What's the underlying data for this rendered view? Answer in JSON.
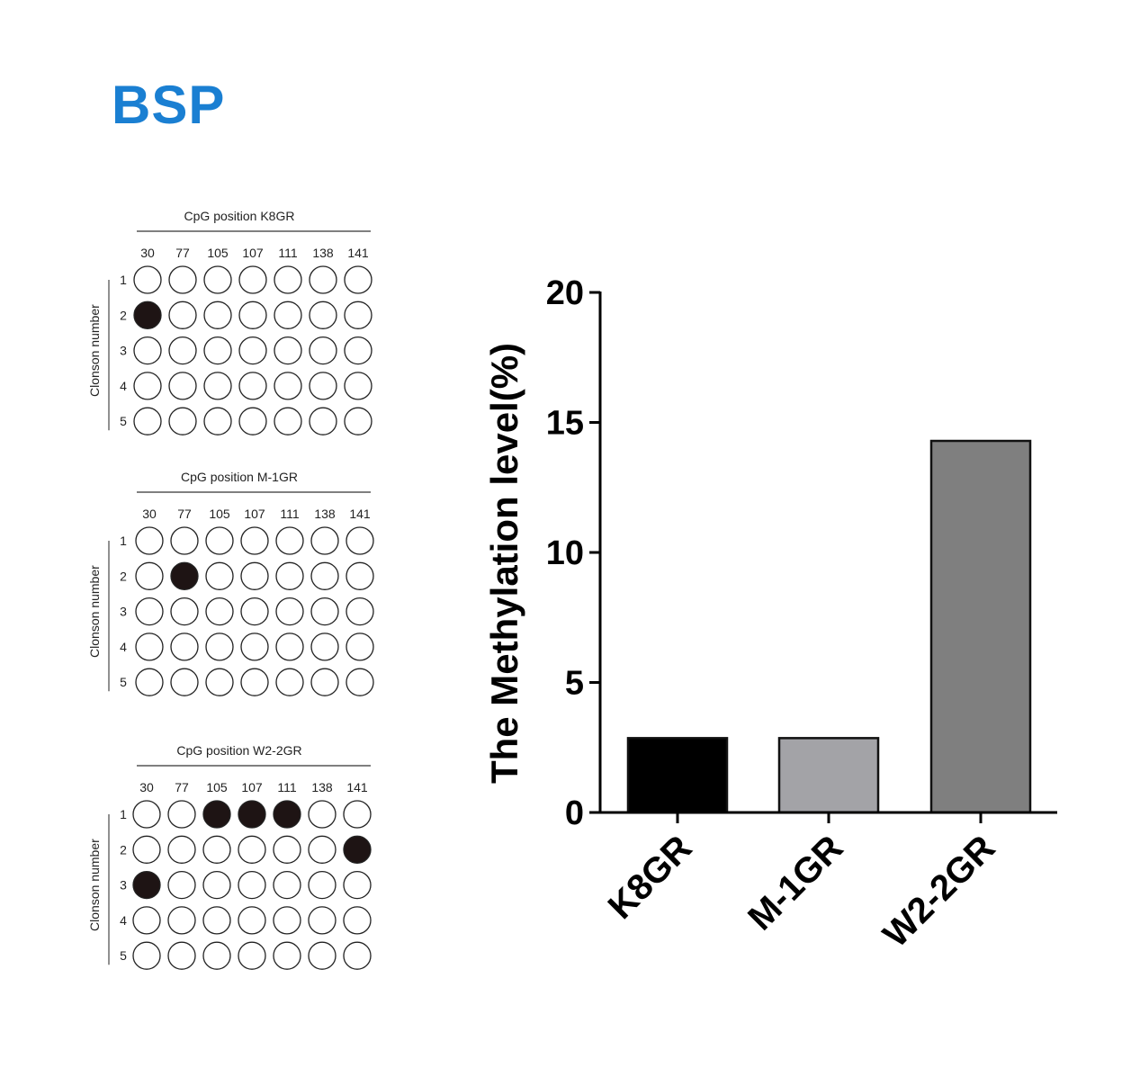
{
  "title": "BSP",
  "lollipop_panels": [
    {
      "title": "CpG position  K8GR",
      "positions": [
        "30",
        "77",
        "105",
        "107",
        "111",
        "138",
        "141"
      ],
      "clone_label": "Clonson number",
      "clones": [
        "1",
        "2",
        "3",
        "4",
        "5"
      ],
      "methylated": [
        [
          0,
          0,
          0,
          0,
          0,
          0,
          0
        ],
        [
          1,
          0,
          0,
          0,
          0,
          0,
          0
        ],
        [
          0,
          0,
          0,
          0,
          0,
          0,
          0
        ],
        [
          0,
          0,
          0,
          0,
          0,
          0,
          0
        ],
        [
          0,
          0,
          0,
          0,
          0,
          0,
          0
        ]
      ]
    },
    {
      "title": "CpG position  M-1GR",
      "positions": [
        "30",
        "77",
        "105",
        "107",
        "111",
        "138",
        "141"
      ],
      "clone_label": "Clonson number",
      "clones": [
        "1",
        "2",
        "3",
        "4",
        "5"
      ],
      "methylated": [
        [
          0,
          0,
          0,
          0,
          0,
          0,
          0
        ],
        [
          0,
          1,
          0,
          0,
          0,
          0,
          0
        ],
        [
          0,
          0,
          0,
          0,
          0,
          0,
          0
        ],
        [
          0,
          0,
          0,
          0,
          0,
          0,
          0
        ],
        [
          0,
          0,
          0,
          0,
          0,
          0,
          0
        ]
      ]
    },
    {
      "title": "CpG position  W2-2GR",
      "positions": [
        "30",
        "77",
        "105",
        "107",
        "111",
        "138",
        "141"
      ],
      "clone_label": "Clonson number",
      "clones": [
        "1",
        "2",
        "3",
        "4",
        "5"
      ],
      "methylated": [
        [
          0,
          0,
          1,
          1,
          1,
          0,
          0
        ],
        [
          0,
          0,
          0,
          0,
          0,
          0,
          1
        ],
        [
          1,
          0,
          0,
          0,
          0,
          0,
          0
        ],
        [
          0,
          0,
          0,
          0,
          0,
          0,
          0
        ],
        [
          0,
          0,
          0,
          0,
          0,
          0,
          0
        ]
      ]
    }
  ],
  "chart_data": {
    "type": "bar",
    "categories": [
      "K8GR",
      "M-1GR",
      "W2-2GR"
    ],
    "values": [
      2.86,
      2.86,
      14.29
    ],
    "colors": [
      "#000000",
      "#a3a3a7",
      "#7f7f7f"
    ],
    "ylabel": "The Methylation level(%)",
    "xlabel": "",
    "ylim": [
      0,
      20
    ],
    "yticks": [
      "0",
      "5",
      "10",
      "15",
      "20"
    ],
    "grid": false
  }
}
